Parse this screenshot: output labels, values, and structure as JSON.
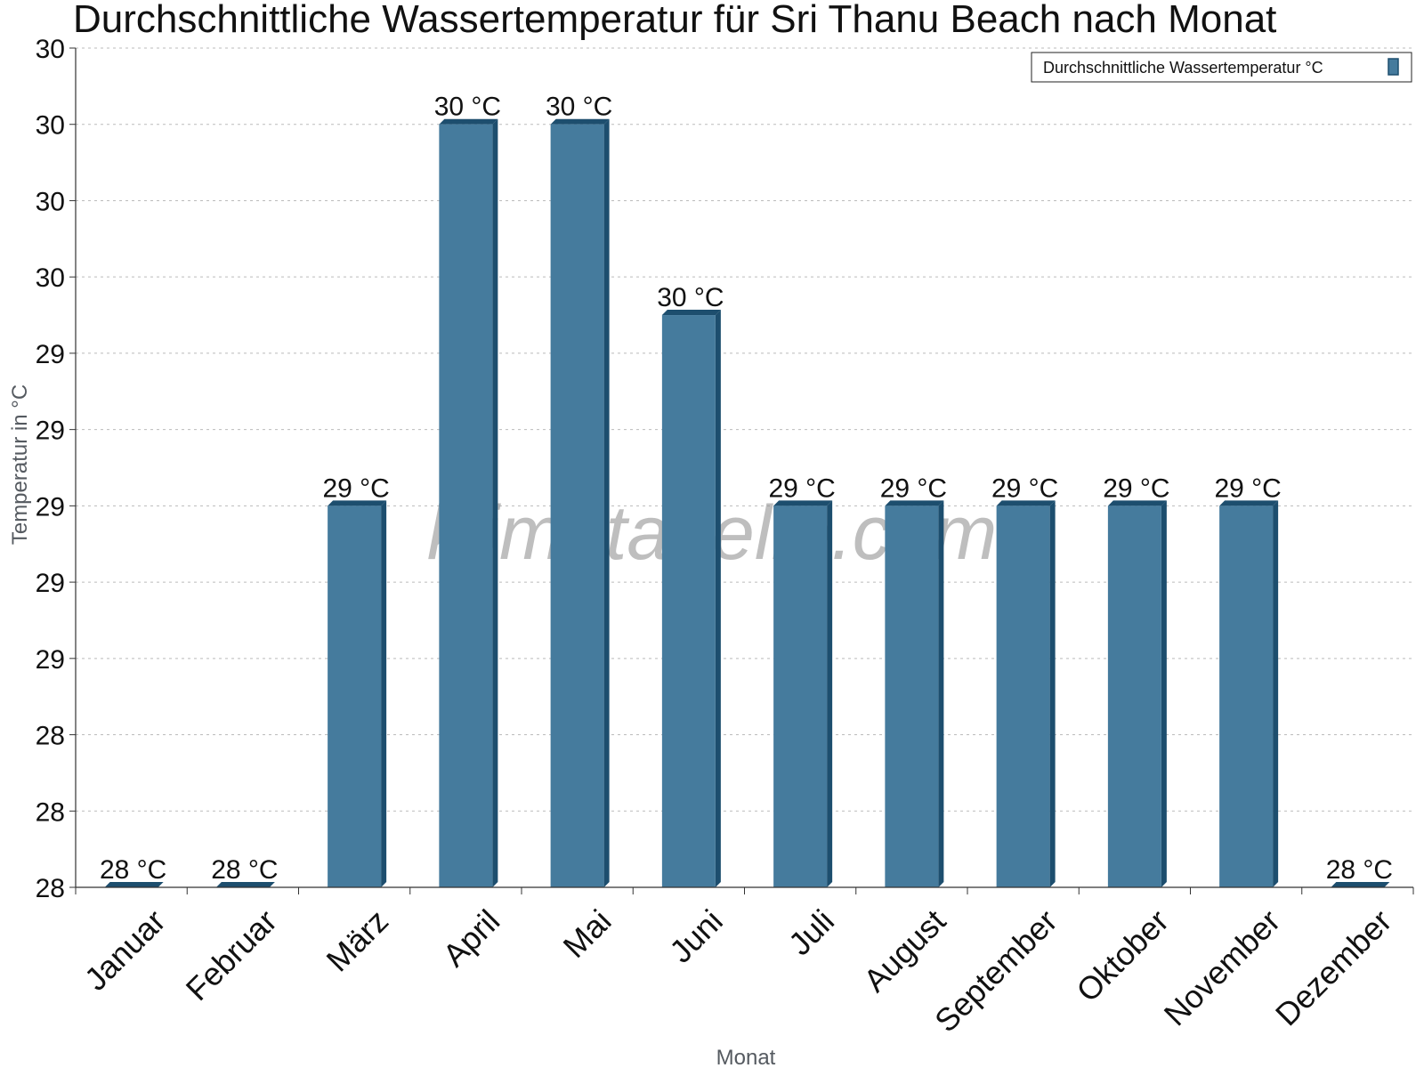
{
  "watermark": "klimatabelle.com",
  "colors": {
    "bar": "#457b9d",
    "bar_dark": "#1d4e6e",
    "grid": "#bbbbbb",
    "axis": "#333333"
  },
  "chart_data": {
    "type": "bar",
    "title": "Durchschnittliche Wassertemperatur für Sri Thanu Beach nach Monat",
    "xlabel": "Monat",
    "ylabel": "Temperatur in °C",
    "ylim": [
      28.0,
      30.2
    ],
    "yticks": [
      28.0,
      28.2,
      28.4,
      28.6,
      28.8,
      29.0,
      29.2,
      29.4,
      29.6,
      29.8,
      30.0,
      30.2
    ],
    "ytick_labels": [
      "28",
      "28",
      "28",
      "29",
      "29",
      "29",
      "29",
      "29",
      "30",
      "30",
      "30",
      "30"
    ],
    "categories": [
      "Januar",
      "Februar",
      "März",
      "April",
      "Mai",
      "Juni",
      "Juli",
      "August",
      "September",
      "Oktober",
      "November",
      "Dezember"
    ],
    "series": [
      {
        "name": "Durchschnittliche Wassertemperatur °C",
        "values": [
          28.0,
          28.0,
          29.0,
          30.0,
          30.0,
          29.5,
          29.0,
          29.0,
          29.0,
          29.0,
          29.0,
          28.0
        ],
        "labels": [
          "28 °C",
          "28 °C",
          "29 °C",
          "30 °C",
          "30 °C",
          "30 °C",
          "29 °C",
          "29 °C",
          "29 °C",
          "29 °C",
          "29 °C",
          "28 °C"
        ]
      }
    ],
    "grid": true,
    "legend_position": "top-right"
  }
}
